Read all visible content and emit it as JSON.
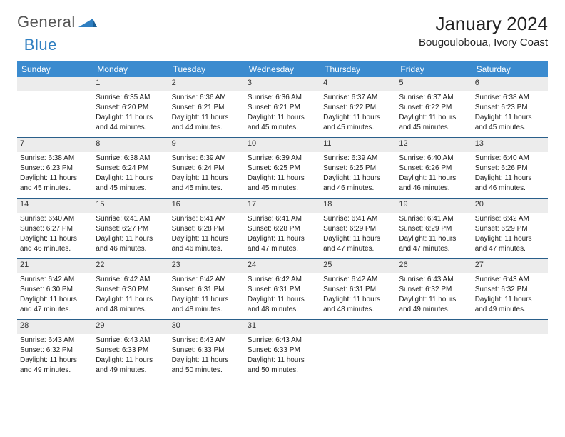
{
  "brand": {
    "part1": "General",
    "part2": "Blue"
  },
  "title": "January 2024",
  "location": "Bougouloboua, Ivory Coast",
  "colors": {
    "header_bg": "#3b8bcf",
    "header_text": "#ffffff",
    "daynum_bg": "#ececec",
    "rule": "#2a5f8a",
    "brand_blue": "#2f7fc1"
  },
  "weekdays": [
    "Sunday",
    "Monday",
    "Tuesday",
    "Wednesday",
    "Thursday",
    "Friday",
    "Saturday"
  ],
  "weeks": [
    [
      null,
      {
        "n": "1",
        "sr": "Sunrise: 6:35 AM",
        "ss": "Sunset: 6:20 PM",
        "d1": "Daylight: 11 hours",
        "d2": "and 44 minutes."
      },
      {
        "n": "2",
        "sr": "Sunrise: 6:36 AM",
        "ss": "Sunset: 6:21 PM",
        "d1": "Daylight: 11 hours",
        "d2": "and 44 minutes."
      },
      {
        "n": "3",
        "sr": "Sunrise: 6:36 AM",
        "ss": "Sunset: 6:21 PM",
        "d1": "Daylight: 11 hours",
        "d2": "and 45 minutes."
      },
      {
        "n": "4",
        "sr": "Sunrise: 6:37 AM",
        "ss": "Sunset: 6:22 PM",
        "d1": "Daylight: 11 hours",
        "d2": "and 45 minutes."
      },
      {
        "n": "5",
        "sr": "Sunrise: 6:37 AM",
        "ss": "Sunset: 6:22 PM",
        "d1": "Daylight: 11 hours",
        "d2": "and 45 minutes."
      },
      {
        "n": "6",
        "sr": "Sunrise: 6:38 AM",
        "ss": "Sunset: 6:23 PM",
        "d1": "Daylight: 11 hours",
        "d2": "and 45 minutes."
      }
    ],
    [
      {
        "n": "7",
        "sr": "Sunrise: 6:38 AM",
        "ss": "Sunset: 6:23 PM",
        "d1": "Daylight: 11 hours",
        "d2": "and 45 minutes."
      },
      {
        "n": "8",
        "sr": "Sunrise: 6:38 AM",
        "ss": "Sunset: 6:24 PM",
        "d1": "Daylight: 11 hours",
        "d2": "and 45 minutes."
      },
      {
        "n": "9",
        "sr": "Sunrise: 6:39 AM",
        "ss": "Sunset: 6:24 PM",
        "d1": "Daylight: 11 hours",
        "d2": "and 45 minutes."
      },
      {
        "n": "10",
        "sr": "Sunrise: 6:39 AM",
        "ss": "Sunset: 6:25 PM",
        "d1": "Daylight: 11 hours",
        "d2": "and 45 minutes."
      },
      {
        "n": "11",
        "sr": "Sunrise: 6:39 AM",
        "ss": "Sunset: 6:25 PM",
        "d1": "Daylight: 11 hours",
        "d2": "and 46 minutes."
      },
      {
        "n": "12",
        "sr": "Sunrise: 6:40 AM",
        "ss": "Sunset: 6:26 PM",
        "d1": "Daylight: 11 hours",
        "d2": "and 46 minutes."
      },
      {
        "n": "13",
        "sr": "Sunrise: 6:40 AM",
        "ss": "Sunset: 6:26 PM",
        "d1": "Daylight: 11 hours",
        "d2": "and 46 minutes."
      }
    ],
    [
      {
        "n": "14",
        "sr": "Sunrise: 6:40 AM",
        "ss": "Sunset: 6:27 PM",
        "d1": "Daylight: 11 hours",
        "d2": "and 46 minutes."
      },
      {
        "n": "15",
        "sr": "Sunrise: 6:41 AM",
        "ss": "Sunset: 6:27 PM",
        "d1": "Daylight: 11 hours",
        "d2": "and 46 minutes."
      },
      {
        "n": "16",
        "sr": "Sunrise: 6:41 AM",
        "ss": "Sunset: 6:28 PM",
        "d1": "Daylight: 11 hours",
        "d2": "and 46 minutes."
      },
      {
        "n": "17",
        "sr": "Sunrise: 6:41 AM",
        "ss": "Sunset: 6:28 PM",
        "d1": "Daylight: 11 hours",
        "d2": "and 47 minutes."
      },
      {
        "n": "18",
        "sr": "Sunrise: 6:41 AM",
        "ss": "Sunset: 6:29 PM",
        "d1": "Daylight: 11 hours",
        "d2": "and 47 minutes."
      },
      {
        "n": "19",
        "sr": "Sunrise: 6:41 AM",
        "ss": "Sunset: 6:29 PM",
        "d1": "Daylight: 11 hours",
        "d2": "and 47 minutes."
      },
      {
        "n": "20",
        "sr": "Sunrise: 6:42 AM",
        "ss": "Sunset: 6:29 PM",
        "d1": "Daylight: 11 hours",
        "d2": "and 47 minutes."
      }
    ],
    [
      {
        "n": "21",
        "sr": "Sunrise: 6:42 AM",
        "ss": "Sunset: 6:30 PM",
        "d1": "Daylight: 11 hours",
        "d2": "and 47 minutes."
      },
      {
        "n": "22",
        "sr": "Sunrise: 6:42 AM",
        "ss": "Sunset: 6:30 PM",
        "d1": "Daylight: 11 hours",
        "d2": "and 48 minutes."
      },
      {
        "n": "23",
        "sr": "Sunrise: 6:42 AM",
        "ss": "Sunset: 6:31 PM",
        "d1": "Daylight: 11 hours",
        "d2": "and 48 minutes."
      },
      {
        "n": "24",
        "sr": "Sunrise: 6:42 AM",
        "ss": "Sunset: 6:31 PM",
        "d1": "Daylight: 11 hours",
        "d2": "and 48 minutes."
      },
      {
        "n": "25",
        "sr": "Sunrise: 6:42 AM",
        "ss": "Sunset: 6:31 PM",
        "d1": "Daylight: 11 hours",
        "d2": "and 48 minutes."
      },
      {
        "n": "26",
        "sr": "Sunrise: 6:43 AM",
        "ss": "Sunset: 6:32 PM",
        "d1": "Daylight: 11 hours",
        "d2": "and 49 minutes."
      },
      {
        "n": "27",
        "sr": "Sunrise: 6:43 AM",
        "ss": "Sunset: 6:32 PM",
        "d1": "Daylight: 11 hours",
        "d2": "and 49 minutes."
      }
    ],
    [
      {
        "n": "28",
        "sr": "Sunrise: 6:43 AM",
        "ss": "Sunset: 6:32 PM",
        "d1": "Daylight: 11 hours",
        "d2": "and 49 minutes."
      },
      {
        "n": "29",
        "sr": "Sunrise: 6:43 AM",
        "ss": "Sunset: 6:33 PM",
        "d1": "Daylight: 11 hours",
        "d2": "and 49 minutes."
      },
      {
        "n": "30",
        "sr": "Sunrise: 6:43 AM",
        "ss": "Sunset: 6:33 PM",
        "d1": "Daylight: 11 hours",
        "d2": "and 50 minutes."
      },
      {
        "n": "31",
        "sr": "Sunrise: 6:43 AM",
        "ss": "Sunset: 6:33 PM",
        "d1": "Daylight: 11 hours",
        "d2": "and 50 minutes."
      },
      null,
      null,
      null
    ]
  ]
}
